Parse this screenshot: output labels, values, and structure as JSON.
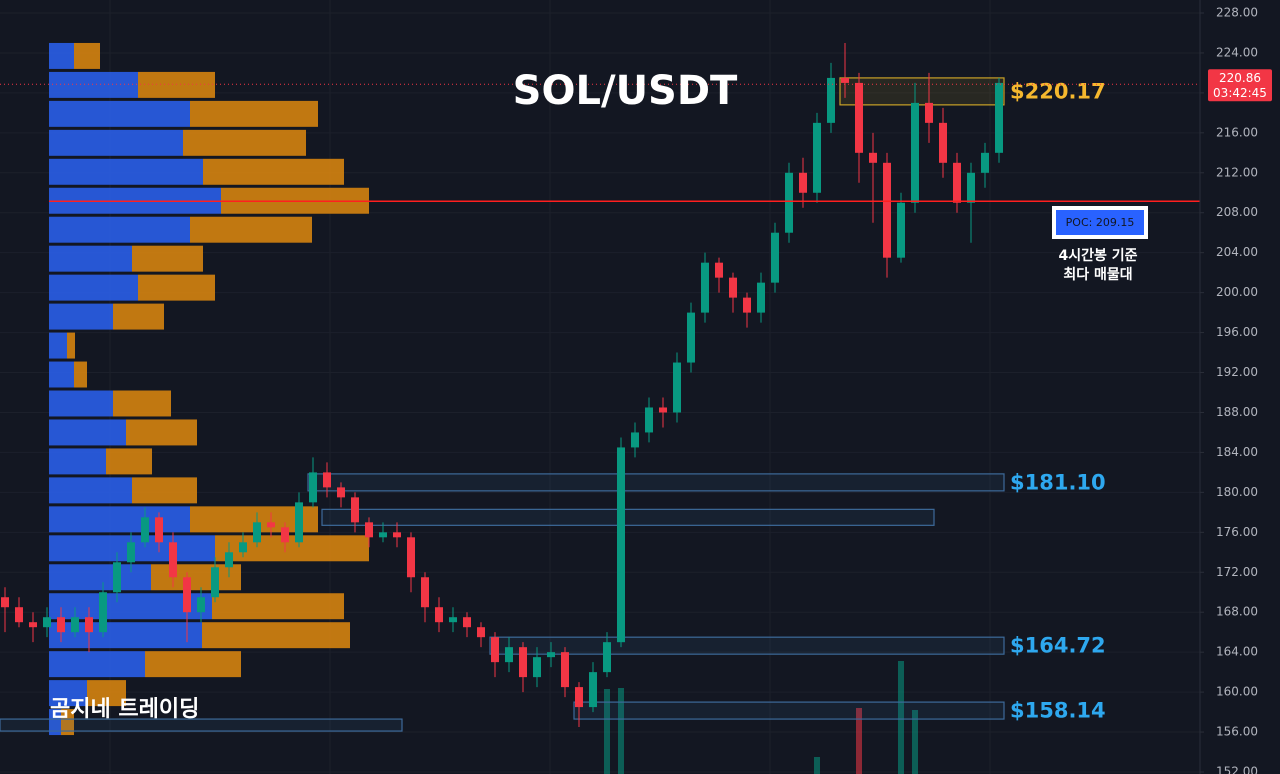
{
  "chart_data": {
    "type": "candlestick",
    "title": "SOL/USDT",
    "watermark": "곰지네 트레이딩",
    "ylim": [
      152,
      228
    ],
    "yticks": [
      {
        "value": 152,
        "label": "152.00"
      },
      {
        "value": 156,
        "label": "156.00"
      },
      {
        "value": 160,
        "label": "160.00"
      },
      {
        "value": 164,
        "label": "164.00"
      },
      {
        "value": 168,
        "label": "168.00"
      },
      {
        "value": 172,
        "label": "172.00"
      },
      {
        "value": 176,
        "label": "176.00"
      },
      {
        "value": 180,
        "label": "180.00"
      },
      {
        "value": 184,
        "label": "184.00"
      },
      {
        "value": 188,
        "label": "188.00"
      },
      {
        "value": 192,
        "label": "192.00"
      },
      {
        "value": 196,
        "label": "196.00"
      },
      {
        "value": 200,
        "label": "200.00"
      },
      {
        "value": 204,
        "label": "204.00"
      },
      {
        "value": 208,
        "label": "208.00"
      },
      {
        "value": 212,
        "label": "212.00"
      },
      {
        "value": 216,
        "label": "216.00"
      },
      {
        "value": 220,
        "label": "220.00"
      },
      {
        "value": 224,
        "label": "224.00"
      },
      {
        "value": 228,
        "label": "228.00"
      }
    ],
    "grid": true,
    "up_color": "#089981",
    "down_color": "#f23645",
    "open": [
      169.5,
      168.5,
      167,
      166.5,
      167.5,
      166,
      167.5,
      166,
      170,
      173,
      175,
      177.5,
      175,
      171.5,
      168,
      169.5,
      172.5,
      174,
      175,
      177,
      176.5,
      175,
      179,
      182,
      180.5,
      179.5,
      177,
      175.5,
      176,
      175.5,
      171.5,
      168.5,
      167,
      167.5,
      166.5,
      165.5,
      163,
      164.5,
      161.5,
      163.5,
      164,
      160.5,
      158.5,
      162,
      165,
      184.5,
      186,
      188.5,
      188,
      193,
      198,
      203,
      201.5,
      199.5,
      198,
      201,
      206,
      212,
      210,
      217,
      221.5,
      221,
      214,
      213,
      203.5,
      209,
      219,
      217,
      213,
      209,
      212,
      214
    ],
    "high": [
      170.5,
      169.5,
      168,
      168.5,
      168.5,
      168.5,
      168.5,
      171,
      174,
      176,
      178.5,
      178,
      176,
      172,
      170.5,
      173.5,
      175,
      176,
      178,
      178,
      177,
      180,
      183.5,
      183,
      181,
      180,
      177.5,
      177,
      177,
      176,
      172,
      169.5,
      168.5,
      168,
      167,
      166,
      165.5,
      165,
      164.5,
      165,
      164.5,
      161,
      163,
      166,
      185.5,
      187,
      189.5,
      189.5,
      194,
      199,
      204,
      203.5,
      202,
      200,
      202,
      207,
      213,
      213.5,
      218,
      223,
      225,
      222,
      216,
      214,
      210,
      221,
      222,
      218.5,
      214,
      213,
      215,
      221.5
    ],
    "low": [
      166,
      166.5,
      165,
      165.5,
      165,
      165.5,
      164,
      165.5,
      169,
      172,
      174.5,
      174,
      170.5,
      165,
      167,
      169,
      171.5,
      173.5,
      174.5,
      175.5,
      174,
      174.5,
      178.5,
      179.5,
      178.5,
      176,
      174.5,
      175,
      174.5,
      170,
      167,
      166,
      166,
      165.5,
      164.5,
      161.5,
      162,
      160,
      160.5,
      162.5,
      159.5,
      156.5,
      158,
      161.5,
      164.5,
      183.5,
      185,
      186.5,
      187,
      192,
      197,
      200,
      198,
      196.5,
      197,
      200,
      205,
      208.5,
      209,
      216,
      219.5,
      211,
      207,
      201.5,
      203,
      208,
      215,
      211.5,
      208,
      205,
      210.5,
      213
    ],
    "close": [
      168.5,
      167,
      166.5,
      167.5,
      166,
      167.5,
      166,
      170,
      173,
      175,
      177.5,
      175,
      171.5,
      168,
      169.5,
      172.5,
      174,
      175,
      177,
      176.5,
      175,
      179,
      182,
      180.5,
      179.5,
      177,
      175.5,
      176,
      175.5,
      171.5,
      168.5,
      167,
      167.5,
      166.5,
      165.5,
      163,
      164.5,
      161.5,
      163.5,
      164,
      160.5,
      158.5,
      162,
      165,
      184.5,
      186,
      188.5,
      188,
      193,
      198,
      203,
      201.5,
      199.5,
      198,
      201,
      206,
      212,
      210,
      217,
      221.5,
      221,
      214,
      213,
      203.5,
      209,
      219,
      217,
      213,
      209,
      212,
      214,
      221
    ],
    "volume": [
      0,
      0,
      0,
      0,
      0,
      0,
      0,
      0,
      0,
      0,
      0,
      0,
      0,
      0,
      0,
      0,
      0,
      0,
      0,
      0,
      0,
      0,
      0,
      0,
      0,
      0,
      0,
      0,
      0,
      0,
      0,
      0,
      0,
      0,
      0,
      0,
      0,
      0,
      0,
      0,
      0,
      0,
      0,
      85,
      86,
      0,
      0,
      0,
      0,
      0,
      0,
      0,
      0,
      0,
      0,
      0,
      0,
      0,
      17,
      0,
      0,
      66,
      0,
      0,
      113,
      64,
      0,
      0,
      0,
      0,
      0,
      0
    ],
    "last_price": 220.86,
    "last_price_label": "220.86",
    "countdown": "03:42:45",
    "poc": 209.15,
    "poc_label": "POC: 209.15",
    "poc_annotation": [
      "4시간봉 기준",
      "최다 매물대"
    ],
    "profile": {
      "buy_color": "#2a5ee8",
      "sell_color": "#e08a0e",
      "row_size": 2.9,
      "prices": [
        223.7,
        220.8,
        217.9,
        215.0,
        212.1,
        209.2,
        206.3,
        203.4,
        200.5,
        197.6,
        194.7,
        191.8,
        188.9,
        186.0,
        183.1,
        180.2,
        177.3,
        174.4,
        171.5,
        168.6,
        165.7,
        162.8,
        159.9,
        157.0
      ],
      "buy": [
        25,
        89,
        141,
        134,
        154,
        172,
        141,
        83,
        89,
        64,
        18,
        25,
        64,
        77,
        57,
        83,
        141,
        166,
        102,
        163,
        153,
        96,
        38,
        12
      ],
      "sell": [
        26,
        77,
        128,
        123,
        141,
        148,
        122,
        71,
        77,
        51,
        8,
        13,
        58,
        71,
        46,
        65,
        128,
        154,
        90,
        132,
        148,
        96,
        39,
        13
      ]
    },
    "zones": [
      {
        "from": 60,
        "to": 71,
        "top": 221.5,
        "bottom": 218.8,
        "color": "#c9a227",
        "label": "$220.17"
      },
      {
        "from": 22,
        "to": 71,
        "top": 181.85,
        "bottom": 180.15,
        "color": "#3d6a9a",
        "label": "$181.10"
      },
      {
        "from": 23,
        "to": 66,
        "top": 178.3,
        "bottom": 176.7,
        "color": "#3d6a9a"
      },
      {
        "from": 35,
        "to": 71,
        "top": 165.5,
        "bottom": 163.8,
        "color": "#3d6a9a",
        "label": "$164.72"
      },
      {
        "from": 41,
        "to": 71,
        "top": 159.0,
        "bottom": 157.3,
        "color": "#3d6a9a",
        "label": "$158.14"
      },
      {
        "from": 0,
        "to": 28,
        "top": 157.3,
        "bottom": 156.1,
        "color": "#3d6a9a"
      }
    ],
    "zone_label_colors": {
      "$220.17": "#f5b82e",
      "default": "#2ea8ef"
    }
  }
}
